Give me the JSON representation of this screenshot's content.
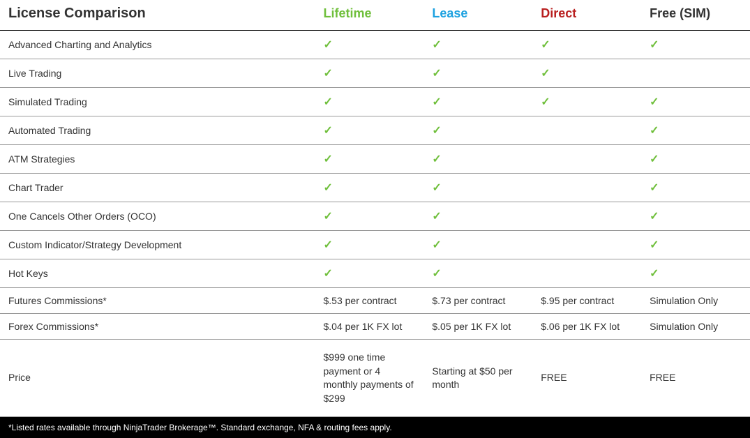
{
  "table": {
    "title": "License Comparison",
    "columns": [
      {
        "label": "Lifetime",
        "color": "#6fbf3b"
      },
      {
        "label": "Lease",
        "color": "#1da1e0"
      },
      {
        "label": "Direct",
        "color": "#b92020"
      },
      {
        "label": "Free (SIM)",
        "color": "#333333"
      }
    ],
    "check_color": "#6fbf3b",
    "border_color": "#999999",
    "header_border_color": "#000000",
    "rows": [
      {
        "feature": "Advanced Charting and Analytics",
        "cells": [
          "check",
          "check",
          "check",
          "check"
        ]
      },
      {
        "feature": "Live Trading",
        "cells": [
          "check",
          "check",
          "check",
          ""
        ]
      },
      {
        "feature": "Simulated Trading",
        "cells": [
          "check",
          "check",
          "check",
          "check"
        ]
      },
      {
        "feature": "Automated Trading",
        "cells": [
          "check",
          "check",
          "",
          "check"
        ]
      },
      {
        "feature": "ATM Strategies",
        "cells": [
          "check",
          "check",
          "",
          "check"
        ]
      },
      {
        "feature": "Chart Trader",
        "cells": [
          "check",
          "check",
          "",
          "check"
        ]
      },
      {
        "feature": "One Cancels Other Orders (OCO)",
        "cells": [
          "check",
          "check",
          "",
          "check"
        ]
      },
      {
        "feature": "Custom Indicator/Strategy Development",
        "cells": [
          "check",
          "check",
          "",
          "check"
        ]
      },
      {
        "feature": "Hot Keys",
        "cells": [
          "check",
          "check",
          "",
          "check"
        ]
      },
      {
        "feature": "Futures Commissions*",
        "cells": [
          "$.53 per contract",
          "$.73 per contract",
          "$.95 per contract",
          "Simulation Only"
        ]
      },
      {
        "feature": "Forex Commissions*",
        "cells": [
          "$.04 per 1K FX lot",
          "$.05 per 1K FX lot",
          "$.06 per 1K FX lot",
          "Simulation Only"
        ]
      },
      {
        "feature": "Price",
        "cells": [
          "$999 one time payment or 4 monthly payments of $299",
          "Starting at $50 per month",
          "FREE",
          "FREE"
        ],
        "price": true
      }
    ],
    "footnote": "*Listed rates available through NinjaTrader Brokerage™. Standard exchange, NFA & routing fees apply.",
    "footnote_bg": "#000000",
    "footnote_color": "#ffffff"
  }
}
